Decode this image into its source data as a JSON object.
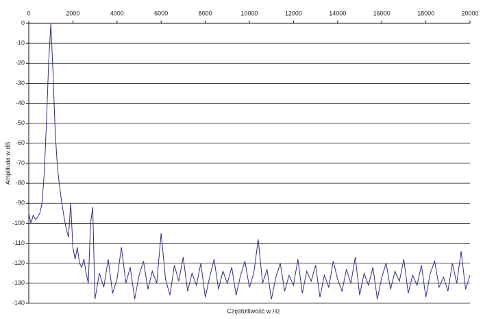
{
  "chart_data": {
    "type": "line",
    "x_label": "Częstotliwość w Hz",
    "y_label": "Amplituda w dB",
    "xlim": [
      0,
      20000
    ],
    "xticks": [
      0,
      2000,
      4000,
      6000,
      8000,
      10000,
      12000,
      14000,
      16000,
      18000,
      20000
    ],
    "ylim": [
      -140,
      0
    ],
    "yticks": [
      0,
      -10,
      -20,
      -30,
      -40,
      -50,
      -60,
      -70,
      -80,
      -90,
      -100,
      -110,
      -120,
      -130,
      -140
    ],
    "grid": true,
    "x_axis_position": "top",
    "series": [
      {
        "color": "#2b2f7a",
        "x": [
          0,
          100,
          200,
          300,
          400,
          500,
          600,
          700,
          800,
          900,
          1000,
          1100,
          1200,
          1300,
          1400,
          1500,
          1600,
          1700,
          1800,
          1900,
          2000,
          2100,
          2200,
          2300,
          2400,
          2500,
          2600,
          2700,
          2800,
          2900,
          3000,
          3200,
          3400,
          3600,
          3800,
          4000,
          4200,
          4400,
          4600,
          4800,
          5000,
          5200,
          5400,
          5600,
          5800,
          6000,
          6200,
          6400,
          6600,
          6800,
          7000,
          7200,
          7400,
          7600,
          7800,
          8000,
          8200,
          8400,
          8600,
          8800,
          9000,
          9200,
          9400,
          9600,
          9800,
          10000,
          10200,
          10400,
          10600,
          10800,
          11000,
          11200,
          11400,
          11600,
          11800,
          12000,
          12200,
          12400,
          12600,
          12800,
          13000,
          13200,
          13400,
          13600,
          13800,
          14000,
          14200,
          14400,
          14600,
          14800,
          15000,
          15200,
          15400,
          15600,
          15800,
          16000,
          16200,
          16400,
          16600,
          16800,
          17000,
          17200,
          17400,
          17600,
          17800,
          18000,
          18200,
          18400,
          18600,
          18800,
          19000,
          19200,
          19400,
          19600,
          19800,
          20000
        ],
        "values": [
          -95,
          -100,
          -96,
          -98,
          -97,
          -95,
          -90,
          -75,
          -50,
          -20,
          0,
          -25,
          -55,
          -72,
          -82,
          -90,
          -97,
          -103,
          -107,
          -90,
          -112,
          -118,
          -112,
          -120,
          -122,
          -118,
          -125,
          -130,
          -100,
          -92,
          -138,
          -125,
          -132,
          -118,
          -135,
          -128,
          -112,
          -130,
          -122,
          -138,
          -126,
          -119,
          -133,
          -124,
          -130,
          -105,
          -128,
          -136,
          -121,
          -129,
          -117,
          -134,
          -125,
          -131,
          -120,
          -137,
          -127,
          -118,
          -133,
          -124,
          -130,
          -122,
          -136,
          -126,
          -119,
          -132,
          -125,
          -108,
          -130,
          -123,
          -138,
          -127,
          -120,
          -134,
          -126,
          -131,
          -118,
          -135,
          -124,
          -129,
          -121,
          -137,
          -126,
          -132,
          -119,
          -128,
          -134,
          -123,
          -130,
          -117,
          -136,
          -125,
          -131,
          -122,
          -138,
          -127,
          -120,
          -133,
          -124,
          -129,
          -118,
          -135,
          -126,
          -131,
          -121,
          -137,
          -125,
          -119,
          -132,
          -127,
          -134,
          -120,
          -130,
          -114,
          -133,
          -126
        ]
      }
    ]
  }
}
